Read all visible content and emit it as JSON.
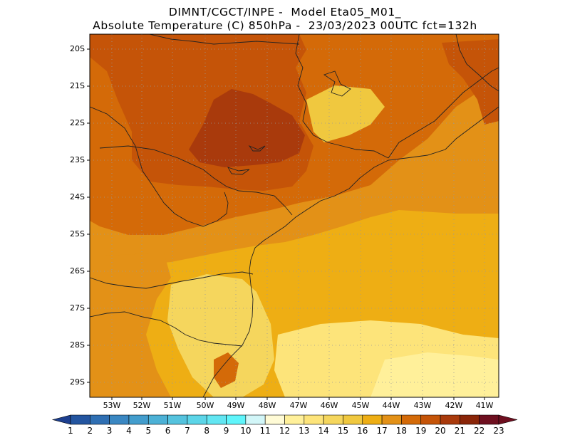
{
  "header": {
    "line1": "DIMNT/CGCT/INPE -  Model Eta05_M01_",
    "line2": "Absolute Temperature (C) 850hPa -  23/03/2023 00UTC fct=132h"
  },
  "axes": {
    "lat_labels": [
      "20S",
      "21S",
      "22S",
      "23S",
      "24S",
      "25S",
      "26S",
      "27S",
      "28S",
      "29S"
    ],
    "lon_labels": [
      "53W",
      "52W",
      "51W",
      "50W",
      "49W",
      "48W",
      "47W",
      "46W",
      "45W",
      "44W",
      "43W",
      "42W",
      "41W"
    ]
  },
  "colorbar": {
    "labels": [
      "1",
      "2",
      "3",
      "4",
      "5",
      "6",
      "7",
      "8",
      "9",
      "10",
      "11",
      "12",
      "13",
      "14",
      "15",
      "16",
      "17",
      "18",
      "19",
      "20",
      "21",
      "22",
      "23"
    ],
    "colors": [
      "#1d3f8f",
      "#2355a0",
      "#2f6fb3",
      "#3a87c2",
      "#439dcd",
      "#4cb1d6",
      "#55c3de",
      "#5cd5e8",
      "#62e6f2",
      "#5ff5fb",
      "#d2f6f8",
      "#fffbd6",
      "#fff09a",
      "#fde47a",
      "#f5d65d",
      "#f0c83f",
      "#eeae14",
      "#e39117",
      "#d46a08",
      "#c55408",
      "#a93a0c",
      "#8a2508",
      "#6e0f1f"
    ]
  },
  "map_fields": {
    "background_temp": 17,
    "zones": [
      {
        "name": "northwest-warm",
        "temp": 20
      },
      {
        "name": "northwest-core",
        "temp": 21
      },
      {
        "name": "central-band",
        "temp": 19
      },
      {
        "name": "east-coast-band",
        "temp": 18
      },
      {
        "name": "south-cool-inland",
        "temp": 15
      },
      {
        "name": "south-ocean-cool",
        "temp": 14
      },
      {
        "name": "far-southeast-cool",
        "temp": 13
      }
    ]
  }
}
